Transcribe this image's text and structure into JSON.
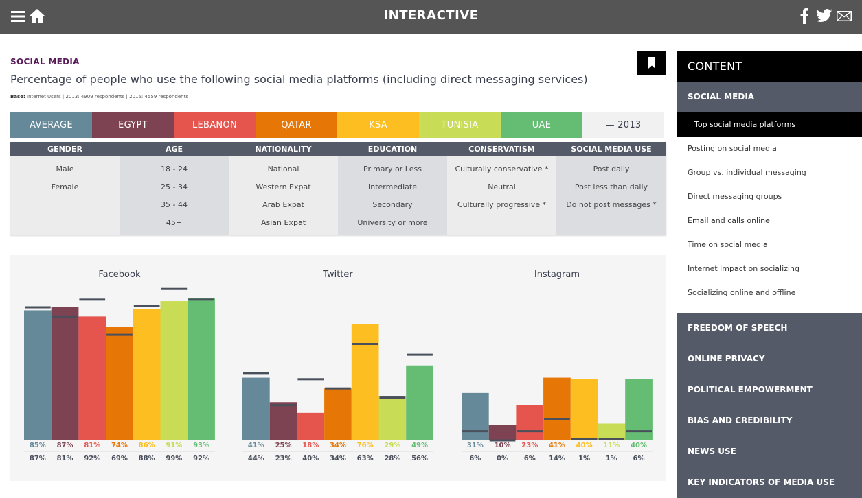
{
  "header": {
    "title": "INTERACTIVE"
  },
  "section": "SOCIAL MEDIA",
  "headline": "Percentage of people who use the following social media platforms (including direct messaging services)",
  "base": {
    "label": "Base:",
    "text": "Internet Users | 2013: 4909 respondents | 2015: 4559 respondents"
  },
  "countries": [
    {
      "label": "AVERAGE",
      "color": "#66899a"
    },
    {
      "label": "EGYPT",
      "color": "#7e4352"
    },
    {
      "label": "LEBANON",
      "color": "#e5554e"
    },
    {
      "label": "QATAR",
      "color": "#e67605"
    },
    {
      "label": "KSA",
      "color": "#fdbe22"
    },
    {
      "label": "TUNISIA",
      "color": "#c8dc55"
    },
    {
      "label": "UAE",
      "color": "#65bd74"
    }
  ],
  "year_toggle": "— 2013",
  "filters": [
    {
      "head": "GENDER",
      "options": [
        "Male",
        "Female"
      ]
    },
    {
      "head": "AGE",
      "options": [
        "18 - 24",
        "25 - 34",
        "35 - 44",
        "45+"
      ]
    },
    {
      "head": "NATIONALITY",
      "options": [
        "National",
        "Western Expat",
        "Arab Expat",
        "Asian Expat"
      ]
    },
    {
      "head": "EDUCATION",
      "options": [
        "Primary or Less",
        "Intermediate",
        "Secondary",
        "University or more"
      ]
    },
    {
      "head": "CONSERVATISM",
      "options": [
        "Culturally conservative *",
        "Neutral",
        "Culturally progressive *"
      ]
    },
    {
      "head": "SOCIAL MEDIA USE",
      "options": [
        "Post daily",
        "Post less than daily",
        "Do not post messages *"
      ]
    }
  ],
  "chart_data": {
    "type": "bar",
    "categories": [
      "AVERAGE",
      "EGYPT",
      "LEBANON",
      "QATAR",
      "KSA",
      "TUNISIA",
      "UAE"
    ],
    "ylim": [
      0,
      100
    ],
    "groups": [
      {
        "title": "Facebook",
        "values_2015": [
          85,
          87,
          81,
          74,
          86,
          91,
          93
        ],
        "values_2013": [
          87,
          81,
          92,
          69,
          88,
          99,
          92
        ],
        "labels_2015": [
          "85%",
          "87%",
          "81%",
          "74%",
          "86%",
          "91%",
          "93%"
        ],
        "labels_2013": [
          "87%",
          "81%",
          "92%",
          "69%",
          "88%",
          "99%",
          "92%"
        ]
      },
      {
        "title": "Twitter",
        "values_2015": [
          41,
          25,
          18,
          34,
          76,
          29,
          49
        ],
        "values_2013": [
          44,
          23,
          40,
          34,
          63,
          28,
          56
        ],
        "labels_2015": [
          "41%",
          "25%",
          "18%",
          "34%",
          "76%",
          "29%",
          "49%"
        ],
        "labels_2013": [
          "44%",
          "23%",
          "40%",
          "34%",
          "63%",
          "28%",
          "56%"
        ]
      },
      {
        "title": "Instagram",
        "values_2015": [
          31,
          10,
          23,
          41,
          40,
          11,
          40
        ],
        "values_2013": [
          6,
          0,
          6,
          14,
          1,
          1,
          6
        ],
        "labels_2015": [
          "31%",
          "10%",
          "23%",
          "41%",
          "40%",
          "11%",
          "40%"
        ],
        "labels_2013": [
          "6%",
          "0%",
          "6%",
          "14%",
          "1%",
          "1%",
          "6%"
        ]
      }
    ]
  },
  "sidebar": {
    "header": "CONTENT",
    "active_group": "SOCIAL MEDIA",
    "subitems": [
      "Top social media platforms",
      "Posting on social media",
      "Group vs. individual messaging",
      "Direct messaging groups",
      "Email and calls online",
      "Time on social media",
      "Internet impact on socializing",
      "Socializing online and offline"
    ],
    "groups": [
      "FREEDOM OF SPEECH",
      "ONLINE PRIVACY",
      "POLITICAL EMPOWERMENT",
      "BIAS AND CREDIBILITY",
      "NEWS USE",
      "KEY INDICATORS OF MEDIA USE"
    ]
  }
}
